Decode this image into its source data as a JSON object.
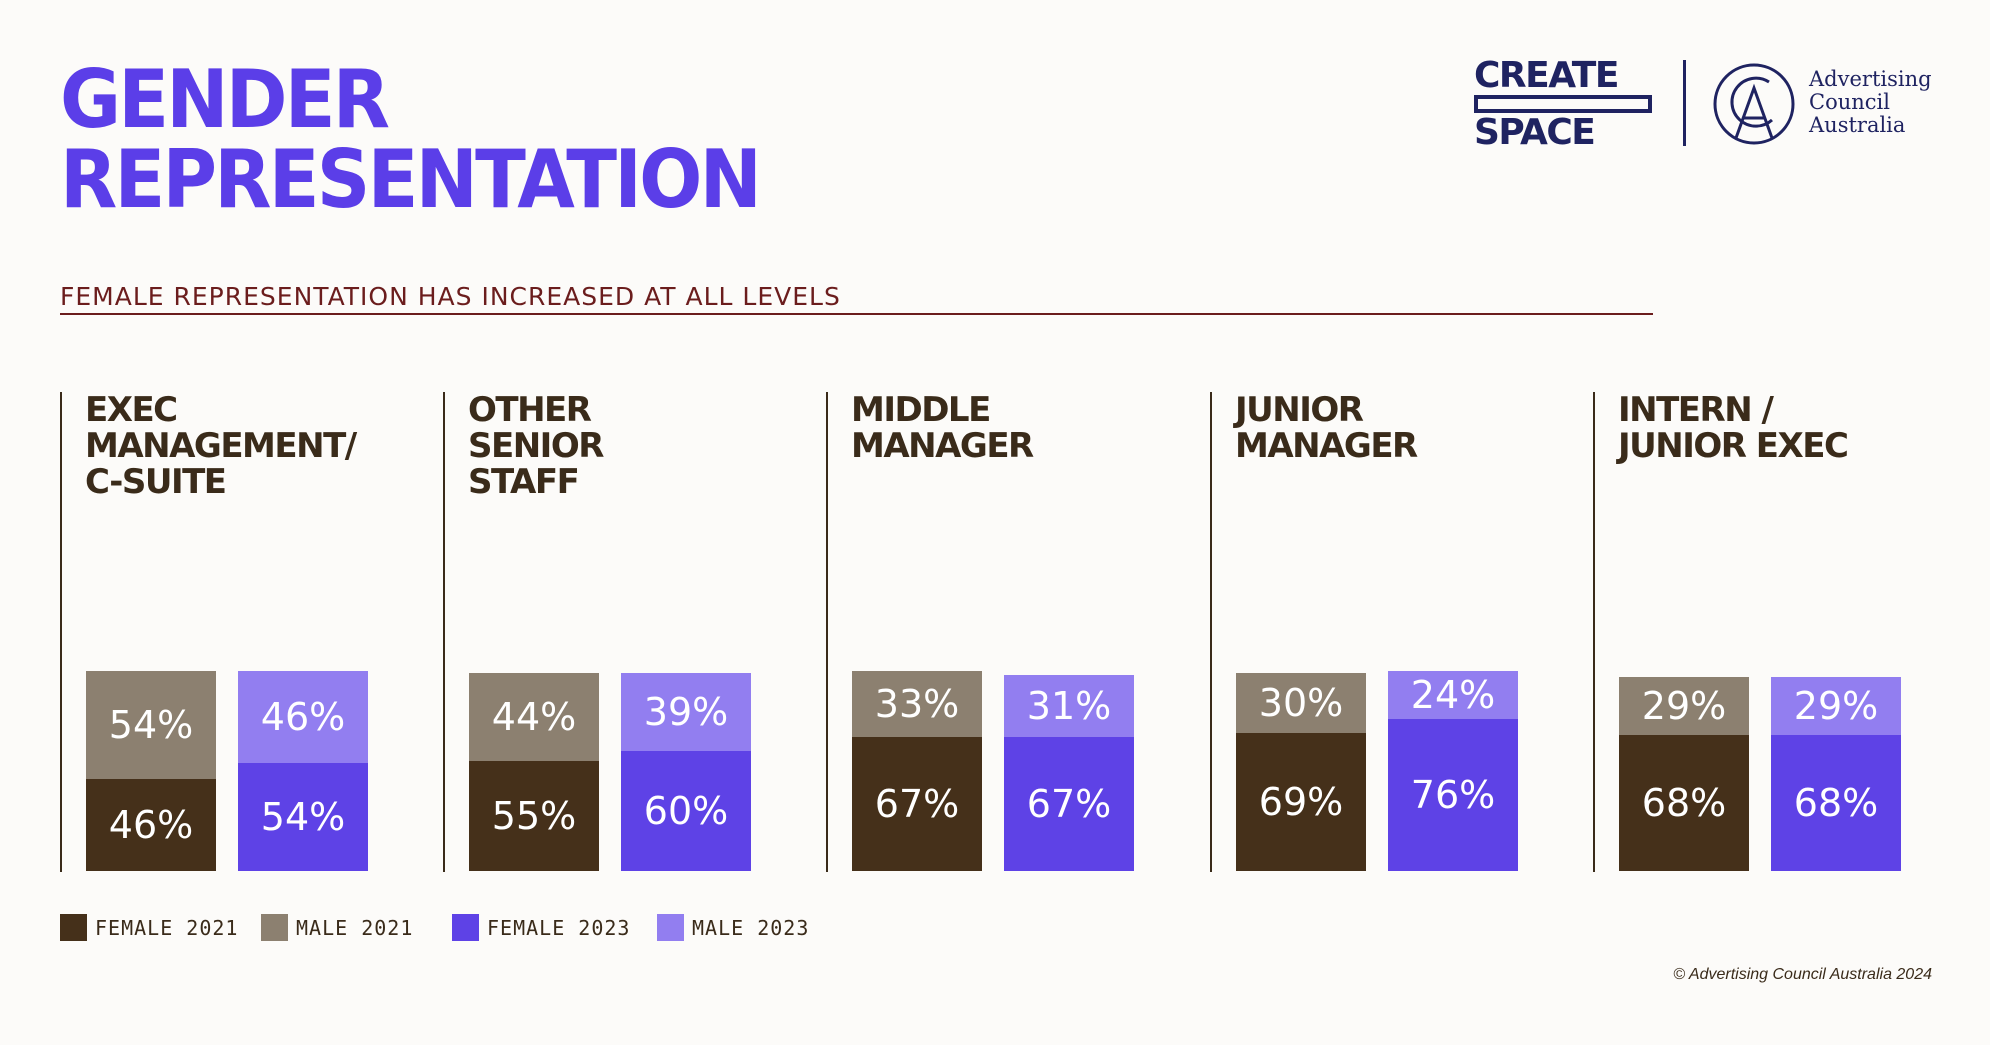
{
  "header": {
    "title_line1": "GENDER",
    "title_line2": "REPRESENTATION",
    "subtitle": "FEMALE REPRESENTATION HAS INCREASED AT ALL LEVELS"
  },
  "logos": {
    "create_line1": "CREATE",
    "create_line2": "SPACE",
    "council_line1": "Advertising",
    "council_line2": "Council",
    "council_line3": "Australia"
  },
  "colors": {
    "female_2021": "#45301a",
    "male_2021": "#8c8070",
    "female_2023": "#5e42e6",
    "male_2023": "#927ef0",
    "title": "#5b3ee8",
    "logo": "#1f2361"
  },
  "chart_data": {
    "type": "bar",
    "stacked": true,
    "categories": [
      "EXEC\nMANAGEMENT/\nC-SUITE",
      "OTHER\nSENIOR\nSTAFF",
      "MIDDLE\nMANAGER",
      "JUNIOR\nMANAGER",
      "INTERN /\nJUNIOR EXEC"
    ],
    "title": "FEMALE REPRESENTATION HAS INCREASED AT ALL LEVELS",
    "series": [
      {
        "name": "FEMALE 2021",
        "values": [
          46,
          55,
          67,
          69,
          68
        ]
      },
      {
        "name": "MALE 2021",
        "values": [
          54,
          44,
          33,
          30,
          29
        ]
      },
      {
        "name": "FEMALE 2023",
        "values": [
          54,
          60,
          67,
          76,
          68
        ]
      },
      {
        "name": "MALE 2023",
        "values": [
          46,
          39,
          31,
          24,
          29
        ]
      }
    ],
    "unit": "%",
    "legend": "bottom-left"
  },
  "legend": [
    {
      "label": "FEMALE 2021",
      "color": "#45301a"
    },
    {
      "label": "MALE 2021",
      "color": "#8c8070"
    },
    {
      "label": "FEMALE 2023",
      "color": "#5e42e6"
    },
    {
      "label": "MALE 2023",
      "color": "#927ef0"
    }
  ],
  "footer": {
    "copyright": "© Advertising Council Australia 2024"
  }
}
